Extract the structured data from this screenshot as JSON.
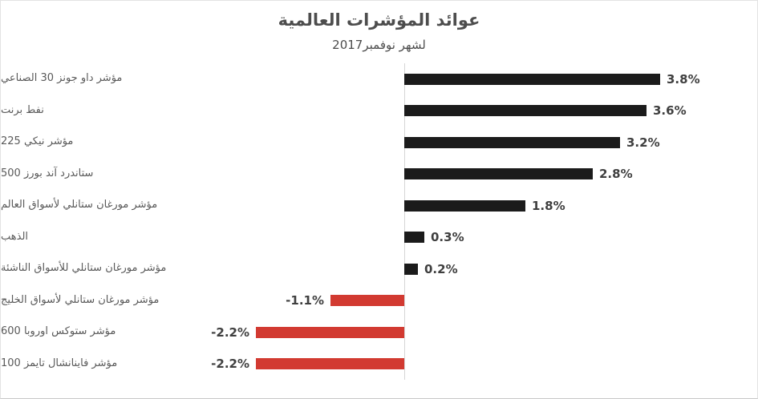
{
  "colors": {
    "positive_bar": "#1b1b1b",
    "negative_bar": "#d23a31",
    "axis_line": "#d6d6d6",
    "title_text": "#4d4d4d",
    "category_text": "#595959",
    "value_text": "#3f3f3f"
  },
  "chart_data": {
    "type": "bar",
    "orientation": "horizontal",
    "title": "عوائد المؤشرات العالمية",
    "subtitle": "لشهر نوفمبر2017",
    "categories": [
      "مؤشر داو جونز 30 الصناعي",
      "نفط برنت",
      "مؤشر نيكي 225",
      "ستاندرد آند بورز 500",
      "مؤشر مورغان ستانلي لأسواق العالم",
      "الذهب",
      "مؤشر مورغان ستانلي للأسواق الناشئة",
      "مؤشر مورغان ستانلي لأسواق الخليج",
      "مؤشر ستوكس اوروبا 600",
      "مؤشر فاينانشال تايمز 100"
    ],
    "values": [
      3.8,
      3.6,
      3.2,
      2.8,
      1.8,
      0.3,
      0.2,
      -1.1,
      -2.2,
      -2.2
    ],
    "value_labels": [
      "3.8%",
      "3.6%",
      "3.2%",
      "2.8%",
      "1.8%",
      "0.3%",
      "0.2%",
      "-1.1%",
      "-2.2%",
      "-2.2%"
    ],
    "xlim": [
      -3.1,
      5.3
    ],
    "grid": false,
    "legend": false,
    "data_label_position": "outside-end",
    "color_rule": "positive bars black, negative bars red"
  }
}
